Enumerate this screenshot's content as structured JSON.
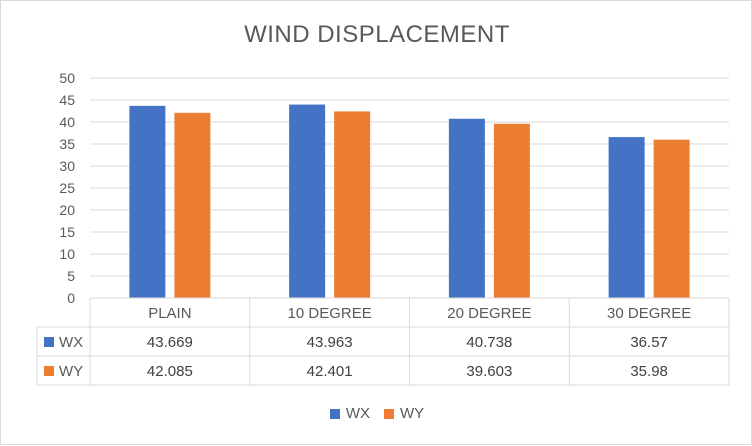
{
  "chart_data": {
    "type": "bar",
    "title": "WIND DISPLACEMENT",
    "categories": [
      "PLAIN",
      "10 DEGREE",
      "20 DEGREE",
      "30 DEGREE"
    ],
    "series": [
      {
        "name": "WX",
        "color": "#4472c4",
        "values": [
          43.669,
          43.963,
          40.738,
          36.57
        ],
        "labels": [
          "43.669",
          "43.963",
          "40.738",
          "36.57"
        ]
      },
      {
        "name": "WY",
        "color": "#ed7d31",
        "values": [
          42.085,
          42.401,
          39.603,
          35.98
        ],
        "labels": [
          "42.085",
          "42.401",
          "39.603",
          "35.98"
        ]
      }
    ],
    "ylim": [
      0,
      50
    ],
    "yticks": [
      "0",
      "5",
      "10",
      "15",
      "20",
      "25",
      "30",
      "35",
      "40",
      "45",
      "50"
    ],
    "grid": true,
    "data_table": true,
    "legend_position": "bottom"
  }
}
